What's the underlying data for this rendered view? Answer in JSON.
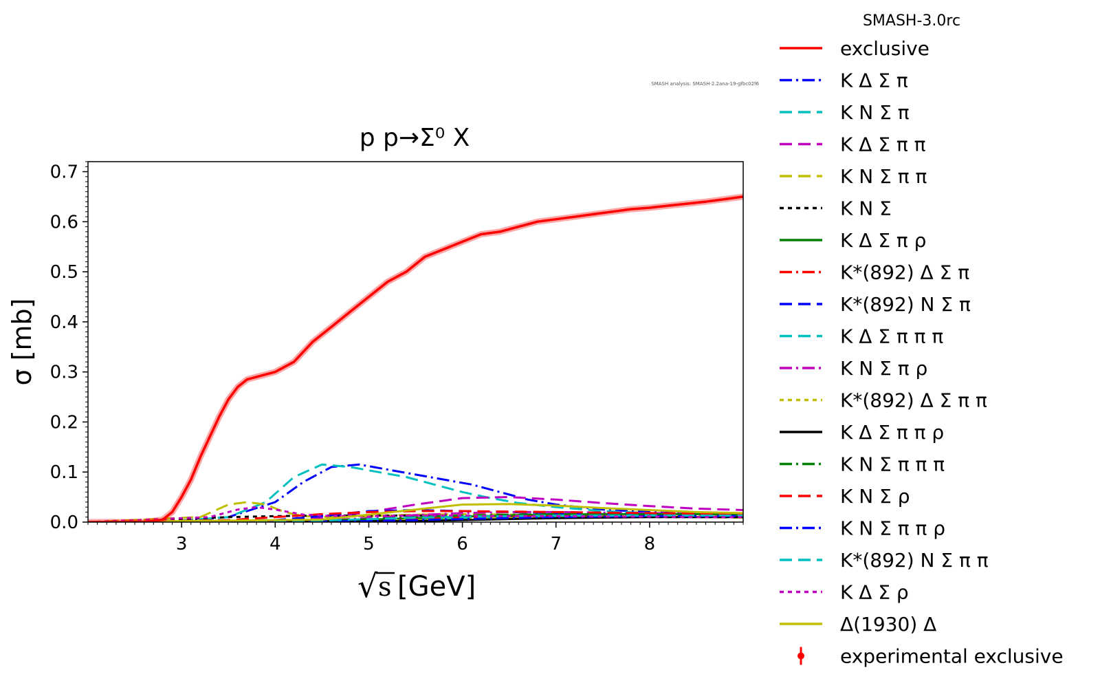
{
  "version_label": "SMASH-3.0rc",
  "analysis_label": "SMASH analysis: SMASH-2.2ana-19-gfbc02f6",
  "chart_data": {
    "type": "line",
    "title": "p p→Σ⁰ X",
    "xlabel_radical": "√",
    "xlabel_var": "s",
    "xlabel_unit": "[GeV]",
    "ylabel": "σ [mb]",
    "xlim": [
      2.0,
      9.0
    ],
    "ylim": [
      0.0,
      0.72
    ],
    "xticks": [
      3,
      4,
      5,
      6,
      7,
      8
    ],
    "xtick_labels": [
      "3",
      "4",
      "5",
      "6",
      "7",
      "8"
    ],
    "yticks": [
      0.0,
      0.1,
      0.2,
      0.3,
      0.4,
      0.5,
      0.6,
      0.7
    ],
    "ytick_labels": [
      "0.0",
      "0.1",
      "0.2",
      "0.3",
      "0.4",
      "0.5",
      "0.6",
      "0.7"
    ],
    "legend_position": "outside-right",
    "series": [
      {
        "name": "exclusive",
        "color": "#ff0000",
        "dash": "solid",
        "x": [
          2.0,
          2.6,
          2.8,
          2.9,
          3.0,
          3.1,
          3.2,
          3.3,
          3.4,
          3.5,
          3.6,
          3.7,
          3.8,
          3.9,
          4.0,
          4.2,
          4.4,
          4.6,
          4.8,
          5.0,
          5.2,
          5.4,
          5.6,
          5.8,
          6.0,
          6.2,
          6.4,
          6.6,
          6.8,
          7.0,
          7.2,
          7.4,
          7.6,
          7.8,
          8.0,
          8.2,
          8.4,
          8.6,
          8.8,
          9.0
        ],
        "y": [
          0.0,
          0.0,
          0.005,
          0.02,
          0.05,
          0.085,
          0.13,
          0.17,
          0.21,
          0.245,
          0.27,
          0.285,
          0.29,
          0.295,
          0.3,
          0.32,
          0.36,
          0.39,
          0.42,
          0.45,
          0.48,
          0.5,
          0.53,
          0.545,
          0.56,
          0.575,
          0.58,
          0.59,
          0.6,
          0.605,
          0.61,
          0.615,
          0.62,
          0.625,
          0.628,
          0.632,
          0.636,
          0.64,
          0.645,
          0.65
        ]
      },
      {
        "name": "K Δ Σ π",
        "color": "#0000ff",
        "dash": "dashdot",
        "x": [
          2.0,
          3.0,
          3.5,
          4.0,
          4.3,
          4.6,
          4.9,
          5.2,
          5.5,
          5.8,
          6.1,
          6.4,
          6.7,
          7.0,
          7.5,
          8.0,
          8.5,
          9.0
        ],
        "y": [
          0.0,
          0.002,
          0.01,
          0.04,
          0.08,
          0.11,
          0.115,
          0.105,
          0.095,
          0.085,
          0.075,
          0.06,
          0.045,
          0.035,
          0.025,
          0.02,
          0.016,
          0.014
        ]
      },
      {
        "name": "K N Σ π",
        "color": "#00bfbf",
        "dash": "dashed",
        "x": [
          2.0,
          3.0,
          3.5,
          3.9,
          4.2,
          4.5,
          4.8,
          5.1,
          5.4,
          5.7,
          6.0,
          6.3,
          6.6,
          7.0,
          7.5,
          8.0,
          8.5,
          9.0
        ],
        "y": [
          0.0,
          0.003,
          0.01,
          0.04,
          0.09,
          0.115,
          0.11,
          0.1,
          0.09,
          0.075,
          0.06,
          0.048,
          0.038,
          0.03,
          0.022,
          0.018,
          0.015,
          0.013
        ]
      },
      {
        "name": "K Δ Σ π π",
        "color": "#bf00bf",
        "dash": "dashed",
        "x": [
          2.0,
          4.0,
          4.5,
          5.0,
          5.5,
          6.0,
          6.5,
          7.0,
          7.5,
          8.0,
          8.5,
          9.0
        ],
        "y": [
          0.0,
          0.002,
          0.008,
          0.02,
          0.035,
          0.048,
          0.05,
          0.045,
          0.038,
          0.032,
          0.027,
          0.024
        ]
      },
      {
        "name": "K N Σ π π",
        "color": "#bfbf00",
        "dash": "dashed",
        "x": [
          2.0,
          3.2,
          3.5,
          3.7,
          3.9,
          4.1,
          4.3,
          4.6,
          5.0,
          5.5,
          6.0,
          6.5,
          7.0,
          7.5,
          8.0,
          8.5,
          9.0
        ],
        "y": [
          0.0,
          0.01,
          0.035,
          0.04,
          0.035,
          0.02,
          0.012,
          0.01,
          0.012,
          0.015,
          0.016,
          0.015,
          0.014,
          0.012,
          0.011,
          0.01,
          0.009
        ]
      },
      {
        "name": "K N Σ",
        "color": "#000000",
        "dash": "dotted",
        "x": [
          2.0,
          3.0,
          3.5,
          4.0,
          4.5,
          5.0,
          5.5,
          6.0,
          6.5,
          7.0,
          7.5,
          8.0,
          8.5,
          9.0
        ],
        "y": [
          0.0,
          0.006,
          0.01,
          0.012,
          0.013,
          0.013,
          0.013,
          0.012,
          0.012,
          0.011,
          0.011,
          0.01,
          0.01,
          0.01
        ]
      },
      {
        "name": "K Δ Σ π ρ",
        "color": "#008000",
        "dash": "solid",
        "x": [
          2.0,
          4.5,
          5.0,
          5.5,
          6.0,
          6.5,
          7.0,
          7.5,
          8.0,
          8.5,
          9.0
        ],
        "y": [
          0.0,
          0.002,
          0.005,
          0.008,
          0.011,
          0.013,
          0.015,
          0.016,
          0.016,
          0.016,
          0.015
        ]
      },
      {
        "name": "K*(892) Δ Σ π",
        "color": "#ff0000",
        "dash": "dashdot",
        "x": [
          2.0,
          4.5,
          5.0,
          5.5,
          6.0,
          6.5,
          7.0,
          7.5,
          8.0,
          8.5,
          9.0
        ],
        "y": [
          0.0,
          0.002,
          0.004,
          0.007,
          0.01,
          0.012,
          0.013,
          0.014,
          0.014,
          0.014,
          0.013
        ]
      },
      {
        "name": "K*(892) N Σ π",
        "color": "#0000ff",
        "dash": "dashed",
        "x": [
          2.0,
          4.0,
          4.5,
          5.0,
          5.5,
          6.0,
          6.5,
          7.0,
          7.5,
          8.0,
          8.5,
          9.0
        ],
        "y": [
          0.0,
          0.004,
          0.012,
          0.022,
          0.024,
          0.022,
          0.02,
          0.018,
          0.016,
          0.015,
          0.014,
          0.013
        ]
      },
      {
        "name": "K Δ Σ π π π",
        "color": "#00bfbf",
        "dash": "dashed",
        "x": [
          2.0,
          5.0,
          5.5,
          6.0,
          6.5,
          7.0,
          7.5,
          8.0,
          8.5,
          9.0
        ],
        "y": [
          0.0,
          0.002,
          0.004,
          0.007,
          0.01,
          0.012,
          0.013,
          0.014,
          0.013,
          0.013
        ]
      },
      {
        "name": "K N Σ π ρ",
        "color": "#bf00bf",
        "dash": "dashdot",
        "x": [
          2.0,
          4.5,
          5.0,
          5.5,
          6.0,
          6.5,
          7.0,
          7.5,
          8.0,
          8.5,
          9.0
        ],
        "y": [
          0.0,
          0.003,
          0.008,
          0.014,
          0.018,
          0.02,
          0.02,
          0.019,
          0.018,
          0.017,
          0.016
        ]
      },
      {
        "name": "K*(892) Δ Σ π π",
        "color": "#bfbf00",
        "dash": "dotted",
        "x": [
          2.0,
          5.0,
          5.5,
          6.0,
          6.5,
          7.0,
          7.5,
          8.0,
          8.5,
          9.0
        ],
        "y": [
          0.0,
          0.002,
          0.004,
          0.006,
          0.008,
          0.009,
          0.01,
          0.011,
          0.011,
          0.011
        ]
      },
      {
        "name": "K Δ Σ π π ρ",
        "color": "#000000",
        "dash": "solid",
        "x": [
          2.0,
          5.5,
          6.0,
          6.5,
          7.0,
          7.5,
          8.0,
          8.5,
          9.0
        ],
        "y": [
          0.0,
          0.002,
          0.004,
          0.006,
          0.008,
          0.009,
          0.01,
          0.01,
          0.01
        ]
      },
      {
        "name": "K N Σ π π π",
        "color": "#008000",
        "dash": "dashdot",
        "x": [
          2.0,
          4.5,
          5.0,
          5.5,
          6.0,
          6.5,
          7.0,
          7.5,
          8.0,
          8.5,
          9.0
        ],
        "y": [
          0.0,
          0.003,
          0.006,
          0.01,
          0.013,
          0.015,
          0.016,
          0.016,
          0.016,
          0.016,
          0.016
        ]
      },
      {
        "name": "K N Σ ρ",
        "color": "#ff0000",
        "dash": "dashed",
        "x": [
          2.0,
          3.5,
          4.0,
          4.5,
          5.0,
          5.5,
          6.0,
          6.5,
          7.0,
          7.5,
          8.0,
          8.5,
          9.0
        ],
        "y": [
          0.0,
          0.004,
          0.01,
          0.016,
          0.02,
          0.022,
          0.022,
          0.021,
          0.02,
          0.019,
          0.018,
          0.017,
          0.016
        ]
      },
      {
        "name": "K N Σ π π ρ",
        "color": "#0000ff",
        "dash": "dashdot",
        "x": [
          2.0,
          5.0,
          5.5,
          6.0,
          6.5,
          7.0,
          7.5,
          8.0,
          8.5,
          9.0
        ],
        "y": [
          0.0,
          0.002,
          0.004,
          0.006,
          0.008,
          0.01,
          0.011,
          0.012,
          0.012,
          0.012
        ]
      },
      {
        "name": "K*(892) N Σ π π",
        "color": "#00bfbf",
        "dash": "dashed",
        "x": [
          2.0,
          4.5,
          5.0,
          5.5,
          6.0,
          6.5,
          7.0,
          7.5,
          8.0,
          8.5,
          9.0
        ],
        "y": [
          0.0,
          0.003,
          0.006,
          0.009,
          0.011,
          0.012,
          0.013,
          0.013,
          0.013,
          0.013,
          0.013
        ]
      },
      {
        "name": "K Δ Σ ρ",
        "color": "#bf00bf",
        "dash": "dotted",
        "x": [
          2.0,
          3.3,
          3.6,
          3.8,
          4.0,
          4.3,
          4.6,
          5.0,
          5.5,
          6.0,
          6.5,
          7.0,
          7.5,
          8.0,
          8.5,
          9.0
        ],
        "y": [
          0.0,
          0.01,
          0.025,
          0.03,
          0.025,
          0.015,
          0.012,
          0.012,
          0.013,
          0.013,
          0.012,
          0.012,
          0.011,
          0.011,
          0.01,
          0.01
        ]
      },
      {
        "name": "Δ(1930) Δ",
        "color": "#bfbf00",
        "dash": "solid",
        "x": [
          2.0,
          4.5,
          5.0,
          5.5,
          6.0,
          6.5,
          7.0,
          7.5,
          8.0,
          8.5,
          9.0
        ],
        "y": [
          0.0,
          0.005,
          0.015,
          0.025,
          0.035,
          0.036,
          0.033,
          0.028,
          0.024,
          0.02,
          0.018
        ]
      }
    ],
    "experimental_label": "experimental exclusive"
  }
}
